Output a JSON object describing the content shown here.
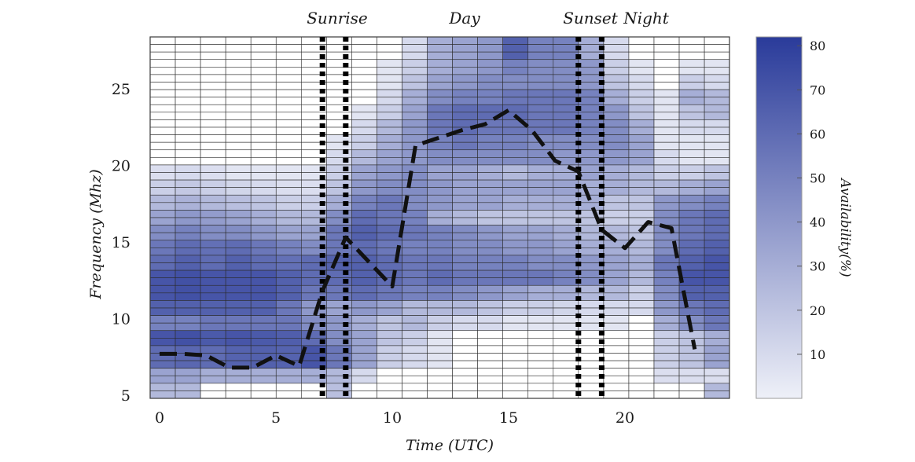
{
  "chart_data": {
    "type": "heatmap",
    "title": "",
    "xlabel": "Time (UTC)",
    "ylabel": "Frequency (Mhz)",
    "xlim": [
      0,
      23
    ],
    "ylim": [
      5,
      28
    ],
    "x_ticks": [
      "0",
      "5",
      "10",
      "15",
      "20"
    ],
    "y_ticks": [
      "5",
      "10",
      "15",
      "20",
      "25"
    ],
    "colorbar": {
      "label": "Availability(%)",
      "min": 0,
      "max": 82,
      "ticks": [
        "10",
        "20",
        "30",
        "40",
        "50",
        "60",
        "70",
        "80"
      ],
      "color_low": "#eef0f8",
      "color_high": "#2a3b9a"
    },
    "period_labels": [
      "Sunrise",
      "Day",
      "Sunset",
      "Night"
    ],
    "vertical_lines_utc": [
      7,
      8,
      18,
      19
    ],
    "grid": true,
    "mean_frequency_line": {
      "style": "dashed",
      "color": "#111111",
      "x": [
        0,
        1,
        2,
        3,
        4,
        5,
        6,
        7,
        8,
        9,
        10,
        11,
        12,
        13,
        14,
        15,
        16,
        17,
        18,
        19,
        20,
        21,
        22,
        23
      ],
      "y": [
        7.7,
        7.7,
        7.6,
        6.8,
        6.8,
        7.6,
        6.9,
        11.8,
        15.3,
        13.7,
        12.1,
        21.3,
        21.8,
        22.3,
        22.7,
        23.6,
        22.3,
        20.3,
        19.6,
        15.8,
        14.6,
        16.3,
        15.9,
        8.0
      ]
    },
    "cells": {
      "x": [
        0,
        1,
        2,
        3,
        4,
        5,
        6,
        7,
        8,
        9,
        10,
        11,
        12,
        13,
        14,
        15,
        16,
        17,
        18,
        19,
        20,
        21,
        22
      ],
      "y_rows": [
        5,
        6,
        7,
        8,
        9,
        10,
        11,
        12,
        13,
        14,
        15,
        16,
        17,
        18,
        19,
        20,
        21,
        22,
        23,
        24,
        25,
        26,
        27
      ],
      "values": [
        [
          25,
          25,
          0,
          0,
          0,
          0,
          0,
          22,
          0,
          0,
          0,
          0,
          0,
          0,
          0,
          0,
          0,
          0,
          0,
          0,
          0,
          0,
          25
        ],
        [
          35,
          35,
          30,
          30,
          30,
          30,
          30,
          25,
          10,
          0,
          0,
          0,
          0,
          0,
          0,
          0,
          0,
          0,
          0,
          0,
          8,
          8,
          8
        ],
        [
          60,
          62,
          60,
          64,
          65,
          64,
          70,
          55,
          35,
          15,
          10,
          5,
          0,
          0,
          0,
          0,
          0,
          0,
          0,
          0,
          15,
          20,
          35
        ],
        [
          70,
          72,
          68,
          70,
          68,
          66,
          60,
          45,
          35,
          20,
          15,
          5,
          0,
          0,
          0,
          0,
          0,
          0,
          0,
          0,
          15,
          20,
          30
        ],
        [
          50,
          50,
          55,
          55,
          55,
          55,
          45,
          40,
          30,
          20,
          25,
          15,
          10,
          10,
          5,
          5,
          5,
          5,
          5,
          0,
          30,
          45,
          55
        ],
        [
          65,
          65,
          65,
          65,
          65,
          55,
          40,
          35,
          40,
          35,
          25,
          25,
          25,
          20,
          15,
          15,
          12,
          10,
          10,
          10,
          40,
          55,
          60
        ],
        [
          70,
          72,
          70,
          70,
          70,
          65,
          55,
          55,
          60,
          55,
          50,
          50,
          45,
          40,
          35,
          30,
          30,
          25,
          25,
          15,
          45,
          65,
          65
        ],
        [
          70,
          72,
          70,
          70,
          70,
          65,
          60,
          60,
          65,
          60,
          55,
          60,
          55,
          55,
          55,
          55,
          50,
          45,
          35,
          25,
          50,
          70,
          70
        ],
        [
          60,
          65,
          60,
          65,
          60,
          58,
          60,
          65,
          65,
          60,
          55,
          55,
          50,
          50,
          50,
          45,
          45,
          40,
          35,
          30,
          55,
          65,
          70
        ],
        [
          55,
          60,
          58,
          60,
          55,
          50,
          45,
          55,
          60,
          55,
          50,
          50,
          45,
          45,
          40,
          40,
          35,
          30,
          30,
          25,
          45,
          60,
          65
        ],
        [
          45,
          50,
          45,
          45,
          40,
          35,
          35,
          55,
          65,
          60,
          55,
          50,
          45,
          40,
          35,
          35,
          30,
          25,
          25,
          20,
          45,
          55,
          60
        ],
        [
          35,
          40,
          38,
          35,
          30,
          25,
          25,
          45,
          60,
          55,
          50,
          30,
          25,
          20,
          20,
          20,
          20,
          20,
          15,
          15,
          45,
          55,
          60
        ],
        [
          25,
          28,
          25,
          22,
          20,
          15,
          15,
          30,
          50,
          55,
          45,
          40,
          35,
          35,
          30,
          30,
          30,
          30,
          20,
          20,
          40,
          45,
          50
        ],
        [
          15,
          18,
          15,
          12,
          10,
          8,
          8,
          20,
          40,
          45,
          45,
          40,
          35,
          35,
          35,
          35,
          35,
          30,
          30,
          25,
          25,
          30,
          35
        ],
        [
          8,
          10,
          8,
          5,
          5,
          5,
          5,
          15,
          35,
          40,
          45,
          35,
          35,
          30,
          25,
          30,
          30,
          35,
          30,
          25,
          15,
          15,
          20
        ],
        [
          0,
          0,
          0,
          0,
          0,
          0,
          0,
          10,
          25,
          35,
          40,
          45,
          45,
          45,
          45,
          45,
          40,
          40,
          40,
          35,
          10,
          5,
          5
        ],
        [
          0,
          0,
          0,
          0,
          0,
          0,
          0,
          5,
          15,
          30,
          40,
          50,
          55,
          50,
          50,
          45,
          45,
          45,
          45,
          35,
          5,
          5,
          5
        ],
        [
          0,
          0,
          0,
          0,
          0,
          0,
          0,
          0,
          10,
          25,
          40,
          55,
          60,
          55,
          55,
          55,
          55,
          50,
          45,
          30,
          5,
          10,
          10
        ],
        [
          0,
          0,
          0,
          0,
          0,
          0,
          0,
          0,
          5,
          15,
          35,
          55,
          60,
          60,
          60,
          55,
          55,
          50,
          40,
          20,
          5,
          20,
          25
        ],
        [
          0,
          0,
          0,
          0,
          0,
          0,
          0,
          0,
          0,
          10,
          30,
          45,
          50,
          50,
          55,
          55,
          55,
          50,
          30,
          15,
          5,
          30,
          25
        ],
        [
          0,
          0,
          0,
          0,
          0,
          0,
          0,
          0,
          0,
          5,
          20,
          35,
          40,
          45,
          45,
          45,
          45,
          40,
          20,
          10,
          0,
          15,
          10
        ],
        [
          0,
          0,
          0,
          0,
          0,
          0,
          0,
          0,
          0,
          5,
          15,
          30,
          35,
          40,
          50,
          45,
          45,
          40,
          15,
          5,
          0,
          5,
          5
        ],
        [
          0,
          0,
          0,
          0,
          0,
          0,
          0,
          0,
          0,
          0,
          10,
          30,
          35,
          40,
          65,
          50,
          50,
          30,
          10,
          0,
          0,
          0,
          0
        ]
      ]
    }
  }
}
